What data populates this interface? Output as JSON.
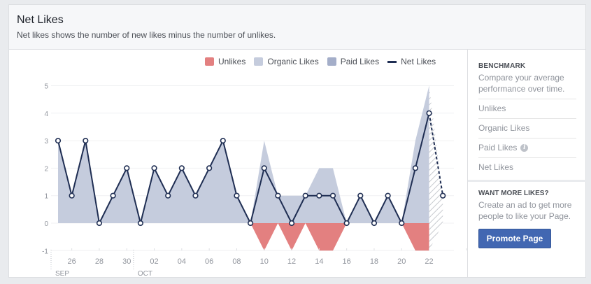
{
  "header": {
    "title": "Net Likes",
    "subtitle": "Net likes shows the number of new likes minus the number of unlikes."
  },
  "legend": {
    "unlikes": "Unlikes",
    "organic": "Organic Likes",
    "paid": "Paid Likes",
    "net": "Net Likes"
  },
  "colors": {
    "unlikes": "#e38080",
    "organic": "#c5ccdd",
    "paid": "#a4aec9",
    "net": "#1f2e53"
  },
  "sidebar": {
    "benchmark_title": "BENCHMARK",
    "benchmark_desc": "Compare your average performance over time.",
    "items": [
      "Unlikes",
      "Organic Likes",
      "Paid Likes",
      "Net Likes"
    ],
    "want_title": "WANT MORE LIKES?",
    "want_desc": "Create an ad to get more people to like your Page.",
    "promote_label": "Promote Page"
  },
  "chart_data": {
    "type": "area",
    "ylim": [
      -1,
      5
    ],
    "yticks": [
      -1,
      0,
      1,
      2,
      3,
      4,
      5
    ],
    "grid": true,
    "legend_position": "top-right",
    "days": [
      25,
      26,
      27,
      28,
      29,
      30,
      1,
      2,
      3,
      4,
      5,
      6,
      7,
      8,
      9,
      10,
      11,
      12,
      13,
      14,
      15,
      16,
      17,
      18,
      19,
      20,
      21,
      22,
      23
    ],
    "xtick_labels": [
      {
        "day": 26,
        "label": "26"
      },
      {
        "day": 28,
        "label": "28"
      },
      {
        "day": 30,
        "label": "30"
      },
      {
        "day": 2,
        "label": "02"
      },
      {
        "day": 4,
        "label": "04"
      },
      {
        "day": 6,
        "label": "06"
      },
      {
        "day": 8,
        "label": "08"
      },
      {
        "day": 10,
        "label": "10"
      },
      {
        "day": 12,
        "label": "12"
      },
      {
        "day": 14,
        "label": "14"
      },
      {
        "day": 16,
        "label": "16"
      },
      {
        "day": 18,
        "label": "18"
      },
      {
        "day": 20,
        "label": "20"
      },
      {
        "day": 22,
        "label": "22"
      }
    ],
    "month_labels": [
      {
        "day": 25,
        "label": "SEP"
      },
      {
        "day": 1,
        "label": "OCT"
      }
    ],
    "series": [
      {
        "name": "Net Likes",
        "values": [
          3,
          1,
          3,
          0,
          1,
          2,
          0,
          2,
          1,
          2,
          1,
          2,
          3,
          1,
          0,
          2,
          1,
          0,
          1,
          1,
          1,
          0,
          1,
          0,
          1,
          0,
          2,
          4,
          1
        ]
      },
      {
        "name": "Likes",
        "values": [
          3,
          1,
          3,
          0,
          1,
          2,
          0,
          2,
          1,
          2,
          1,
          2,
          3,
          1,
          0,
          3,
          1,
          1,
          1,
          2,
          2,
          0,
          1,
          0,
          1,
          0,
          3,
          5,
          1
        ]
      },
      {
        "name": "Unlikes",
        "values": [
          0,
          0,
          0,
          0,
          0,
          0,
          0,
          0,
          0,
          0,
          0,
          0,
          0,
          0,
          0,
          -1,
          0,
          -1,
          0,
          -1,
          -1,
          0,
          0,
          0,
          0,
          0,
          -1,
          -1,
          0
        ]
      }
    ]
  }
}
